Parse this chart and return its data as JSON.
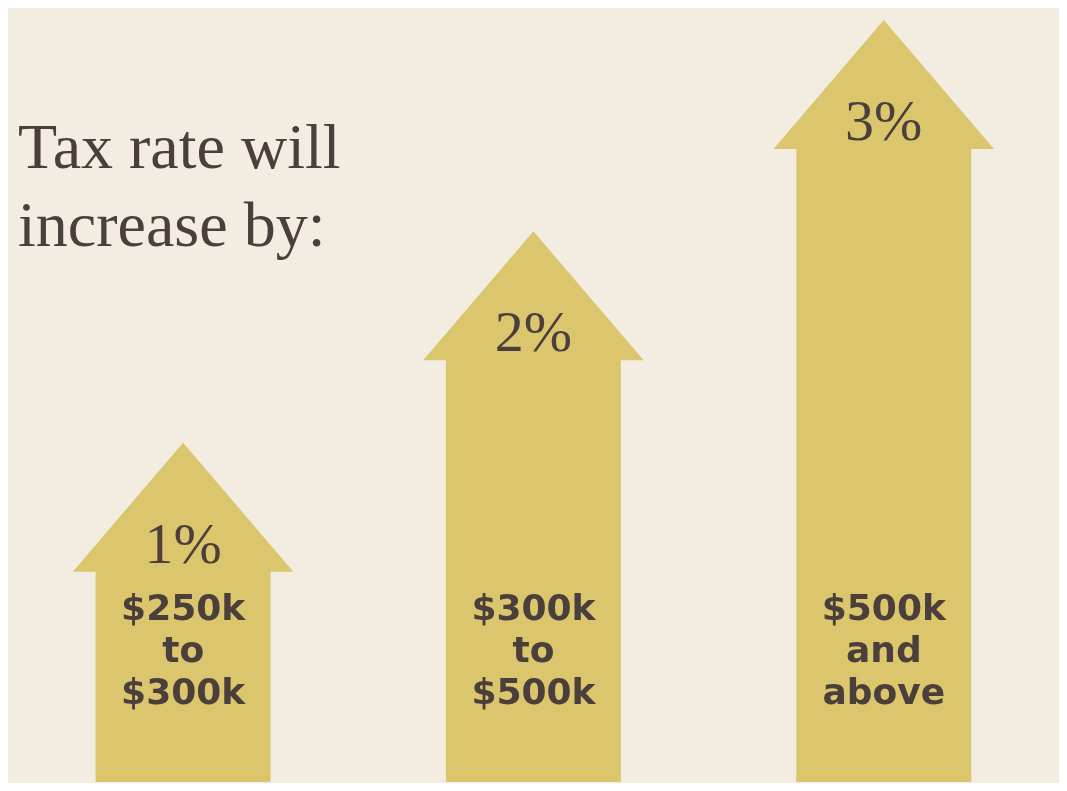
{
  "chart_data": {
    "type": "bar",
    "title": "Tax rate will increase by:",
    "categories": [
      "$250k to $300k",
      "$300k to $500k",
      "$500k and above"
    ],
    "values": [
      1,
      2,
      3
    ],
    "value_labels": [
      "1%",
      "2%",
      "3%"
    ],
    "color": "#dbc66e"
  }
}
